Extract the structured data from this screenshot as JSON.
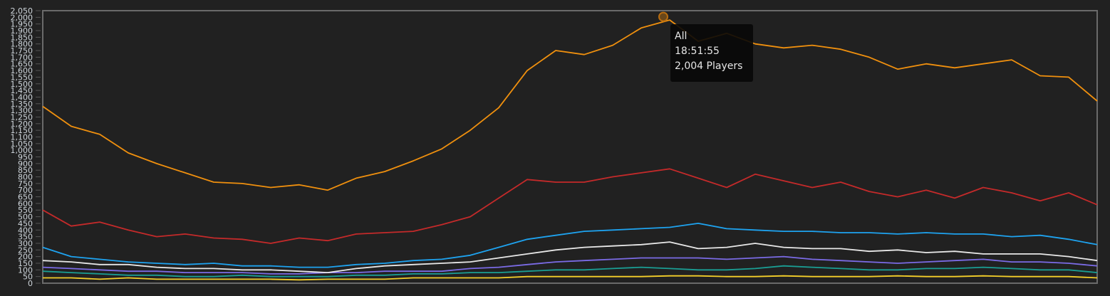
{
  "chart_data": {
    "type": "line",
    "title": "",
    "xlabel": "",
    "ylabel": "",
    "ylim": [
      0,
      2050
    ],
    "y_ticks": [
      0,
      50,
      100,
      150,
      200,
      250,
      300,
      350,
      400,
      450,
      500,
      550,
      600,
      650,
      700,
      750,
      800,
      850,
      900,
      950,
      1000,
      1050,
      1100,
      1150,
      1200,
      1250,
      1300,
      1350,
      1400,
      1450,
      1500,
      1550,
      1600,
      1650,
      1700,
      1750,
      1800,
      1850,
      1900,
      1950,
      2000,
      2050
    ],
    "y_tick_labels": [
      "0",
      "50",
      "100",
      "150",
      "200",
      "250",
      "300",
      "350",
      "400",
      "450",
      "500",
      "550",
      "600",
      "650",
      "700",
      "750",
      "800",
      "850",
      "900",
      "950",
      "1,000",
      "1,050",
      "1,100",
      "1,150",
      "1,200",
      "1,250",
      "1,300",
      "1,350",
      "1,400",
      "1,450",
      "1,500",
      "1,550",
      "1,600",
      "1,650",
      "1,700",
      "1,750",
      "1,800",
      "1,850",
      "1,900",
      "1,950",
      "2,000",
      "2,050"
    ],
    "grid": false,
    "legend": "none",
    "series": [
      {
        "name": "All",
        "color": "#f0900e",
        "values": [
          1330,
          1180,
          1120,
          980,
          900,
          830,
          760,
          750,
          720,
          740,
          700,
          790,
          840,
          920,
          1010,
          1150,
          1320,
          1600,
          1750,
          1720,
          1790,
          1920,
          1980,
          1820,
          1880,
          1800,
          1770,
          1790,
          1760,
          1700,
          1610,
          1650,
          1620,
          1650,
          1680,
          1560,
          1550,
          1370
        ]
      },
      {
        "color": "#c42a2a",
        "values": [
          550,
          430,
          460,
          400,
          350,
          370,
          340,
          330,
          300,
          340,
          320,
          370,
          380,
          390,
          440,
          500,
          640,
          780,
          760,
          760,
          800,
          830,
          860,
          790,
          720,
          820,
          770,
          720,
          760,
          690,
          650,
          700,
          640,
          720,
          680,
          620,
          680,
          590
        ]
      },
      {
        "color": "#1ea3f0",
        "values": [
          270,
          200,
          180,
          160,
          150,
          140,
          150,
          130,
          130,
          120,
          120,
          140,
          150,
          170,
          180,
          210,
          270,
          330,
          360,
          390,
          400,
          410,
          420,
          450,
          410,
          400,
          390,
          390,
          380,
          380,
          370,
          380,
          370,
          370,
          350,
          360,
          330,
          290
        ]
      },
      {
        "color": "#e8e8e8",
        "values": [
          170,
          160,
          140,
          140,
          120,
          110,
          110,
          100,
          100,
          90,
          80,
          110,
          130,
          140,
          150,
          160,
          190,
          220,
          250,
          270,
          280,
          290,
          310,
          260,
          270,
          300,
          270,
          260,
          260,
          240,
          250,
          230,
          240,
          220,
          220,
          220,
          200,
          170
        ]
      },
      {
        "color": "#7b6be6",
        "values": [
          120,
          110,
          100,
          90,
          90,
          80,
          80,
          80,
          70,
          70,
          80,
          80,
          90,
          90,
          90,
          110,
          120,
          140,
          160,
          170,
          180,
          190,
          190,
          190,
          180,
          190,
          200,
          180,
          170,
          160,
          150,
          160,
          170,
          180,
          160,
          160,
          150,
          130
        ]
      },
      {
        "color": "#1a9e94",
        "values": [
          90,
          80,
          70,
          60,
          60,
          50,
          50,
          60,
          50,
          50,
          50,
          60,
          60,
          70,
          70,
          80,
          80,
          90,
          100,
          100,
          110,
          120,
          110,
          100,
          100,
          110,
          130,
          120,
          110,
          100,
          100,
          110,
          110,
          120,
          110,
          100,
          100,
          80
        ]
      },
      {
        "color": "#f5d02a",
        "values": [
          40,
          40,
          30,
          40,
          30,
          30,
          30,
          30,
          30,
          25,
          30,
          30,
          30,
          40,
          40,
          40,
          40,
          50,
          50,
          50,
          50,
          50,
          55,
          55,
          50,
          50,
          55,
          50,
          50,
          50,
          55,
          50,
          50,
          55,
          50,
          50,
          50,
          40
        ]
      }
    ],
    "tooltip": {
      "series": "All",
      "time": "18:51:55",
      "value": 2004,
      "value_label": "2,004 Players"
    }
  }
}
